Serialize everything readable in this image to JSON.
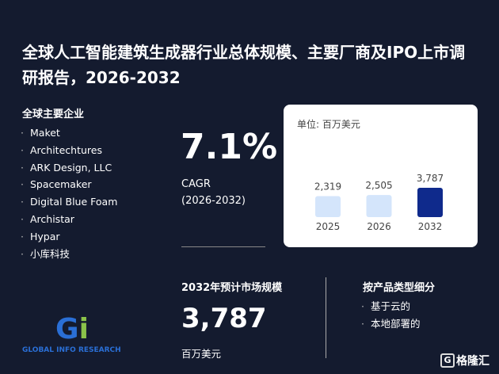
{
  "header": {
    "title": "全球人工智能建筑生成器行业总体规模、主要厂商及IPO上市调研报告，2026-2032"
  },
  "companies": {
    "heading": "全球主要企业",
    "items": [
      "Maket",
      "Architechtures",
      "ARK Design, LLC",
      "Spacemaker",
      "Digital Blue Foam",
      "Archistar",
      "Hypar",
      "小库科技"
    ]
  },
  "cagr": {
    "value": "7.1%",
    "label": "CAGR",
    "period": "(2026-2032)"
  },
  "chart": {
    "type": "bar",
    "unit": "单位: 百万美元",
    "categories": [
      "2025",
      "2026",
      "2032"
    ],
    "values": [
      2319,
      2505,
      3787
    ],
    "value_labels": [
      "2,319",
      "2,505",
      "3,787"
    ],
    "colors": [
      "#d4e5fb",
      "#d4e5fb",
      "#0f2a8c"
    ]
  },
  "market": {
    "heading": "2032年预计市场规模",
    "value": "3,787",
    "unit": "百万美元"
  },
  "segments": {
    "heading": "按产品类型细分",
    "items": [
      "基于云的",
      "本地部署的"
    ]
  },
  "logos": {
    "left": "GLOBAL INFO RESEARCH",
    "right": "格隆汇"
  }
}
